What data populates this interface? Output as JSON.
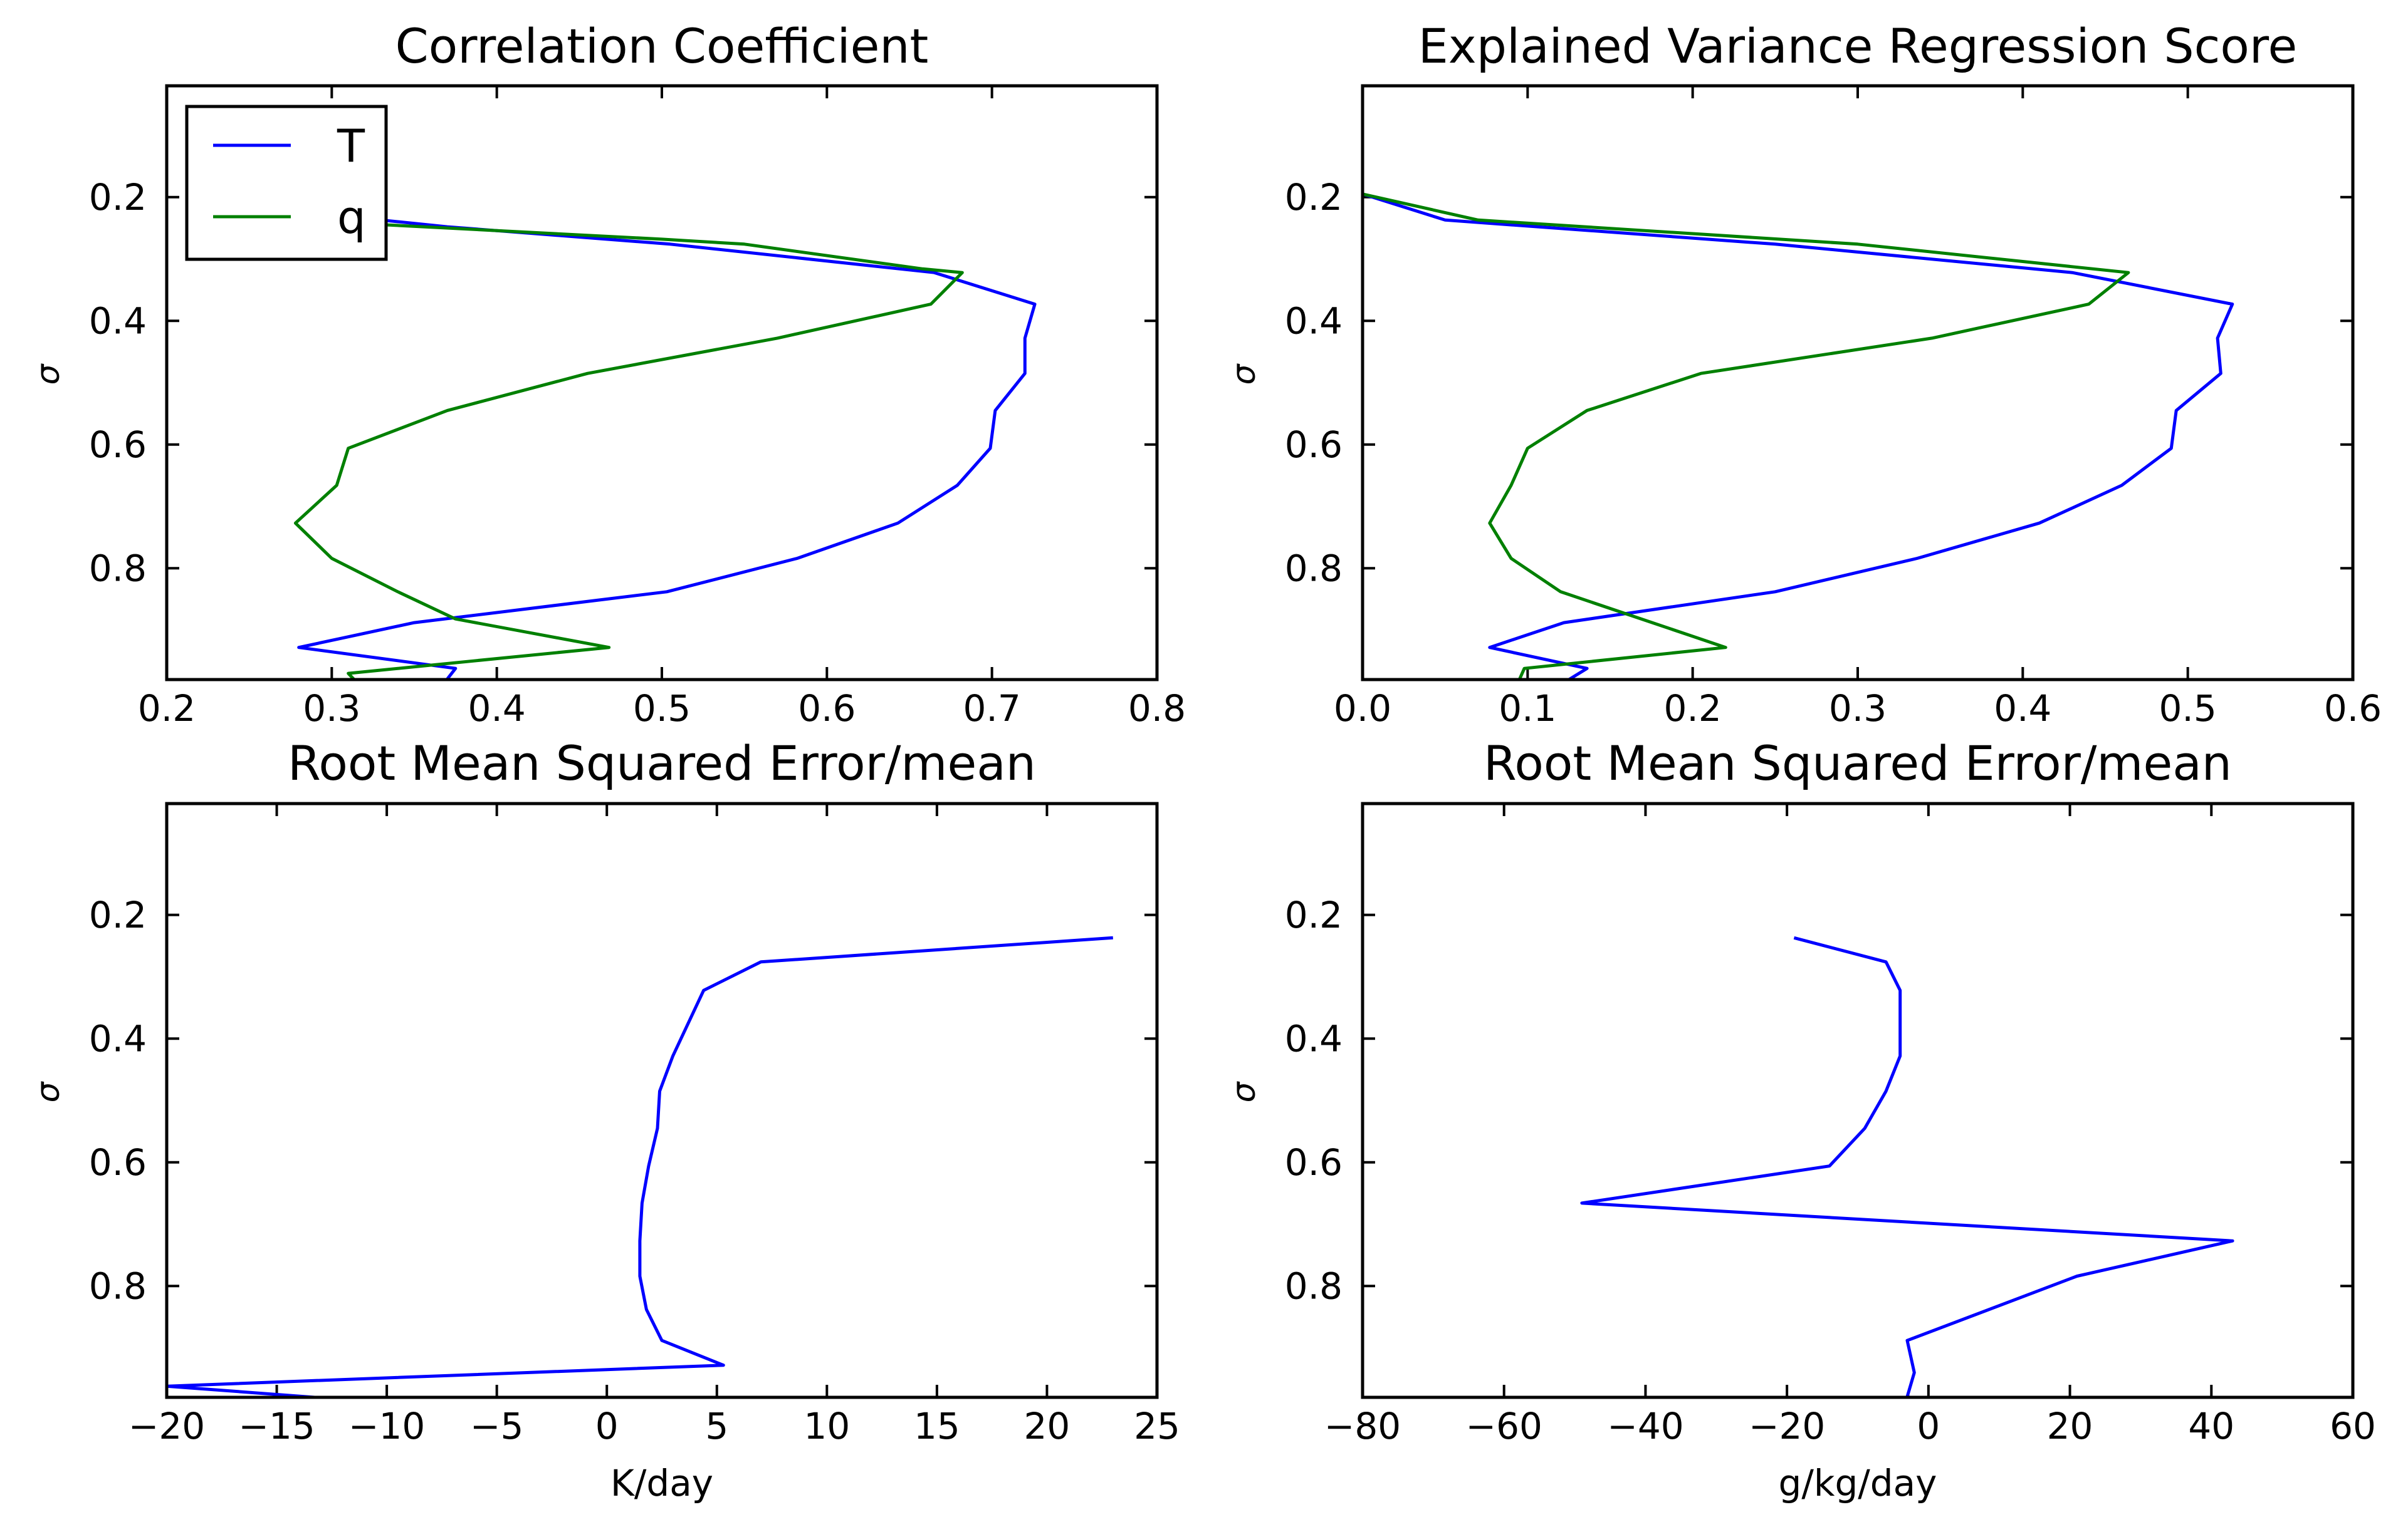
{
  "colors": {
    "T": "#0000ff",
    "q": "#008000"
  },
  "chart_data": [
    {
      "type": "line",
      "title": "Correlation Coefficient",
      "xlabel": "",
      "ylabel": "σ",
      "xlim": [
        0.2,
        0.8
      ],
      "ylim": [
        0.98,
        0.02
      ],
      "xticks": [
        0.2,
        0.3,
        0.4,
        0.5,
        0.6,
        0.7,
        0.8
      ],
      "xtick_labels": [
        "0.2",
        "0.3",
        "0.4",
        "0.5",
        "0.6",
        "0.7",
        "0.8"
      ],
      "yticks": [
        0.2,
        0.4,
        0.6,
        0.8
      ],
      "ytick_labels": [
        "0.2",
        "0.4",
        "0.6",
        "0.8"
      ],
      "legend": {
        "position": "top-left",
        "entries": [
          "T",
          "q"
        ]
      },
      "series": [
        {
          "name": "T",
          "color_key": "T",
          "points": [
            [
              0.38,
              0.998
            ],
            [
              0.37,
              0.979
            ],
            [
              0.375,
              0.962
            ],
            [
              0.28,
              0.928
            ],
            [
              0.35,
              0.888
            ],
            [
              0.503,
              0.838
            ],
            [
              0.582,
              0.784
            ],
            [
              0.643,
              0.727
            ],
            [
              0.679,
              0.666
            ],
            [
              0.699,
              0.606
            ],
            [
              0.702,
              0.545
            ],
            [
              0.72,
              0.485
            ],
            [
              0.72,
              0.428
            ],
            [
              0.726,
              0.373
            ],
            [
              0.665,
              0.322
            ],
            [
              0.505,
              0.276
            ],
            [
              0.37,
              0.248
            ],
            [
              0.33,
              0.237
            ]
          ]
        },
        {
          "name": "q",
          "color_key": "q",
          "points": [
            [
              0.32,
              0.998
            ],
            [
              0.31,
              0.97
            ],
            [
              0.468,
              0.928
            ],
            [
              0.375,
              0.882
            ],
            [
              0.34,
              0.838
            ],
            [
              0.3,
              0.784
            ],
            [
              0.278,
              0.727
            ],
            [
              0.303,
              0.666
            ],
            [
              0.31,
              0.606
            ],
            [
              0.37,
              0.545
            ],
            [
              0.455,
              0.485
            ],
            [
              0.57,
              0.428
            ],
            [
              0.663,
              0.373
            ],
            [
              0.682,
              0.322
            ],
            [
              0.658,
              0.316
            ],
            [
              0.55,
              0.276
            ],
            [
              0.5,
              0.268
            ],
            [
              0.32,
              0.243
            ]
          ]
        }
      ]
    },
    {
      "type": "line",
      "title": "Explained Variance Regression Score",
      "xlabel": "",
      "ylabel": "σ",
      "xlim": [
        0.0,
        0.6
      ],
      "ylim": [
        0.98,
        0.02
      ],
      "xticks": [
        0.0,
        0.1,
        0.2,
        0.3,
        0.4,
        0.5,
        0.6
      ],
      "xtick_labels": [
        "0.0",
        "0.1",
        "0.2",
        "0.3",
        "0.4",
        "0.5",
        "0.6"
      ],
      "yticks": [
        0.2,
        0.4,
        0.6,
        0.8
      ],
      "ytick_labels": [
        "0.2",
        "0.4",
        "0.6",
        "0.8"
      ],
      "series": [
        {
          "name": "T",
          "color_key": "T",
          "points": [
            [
              0.125,
              0.98
            ],
            [
              0.136,
              0.962
            ],
            [
              0.077,
              0.928
            ],
            [
              0.122,
              0.888
            ],
            [
              0.25,
              0.838
            ],
            [
              0.336,
              0.784
            ],
            [
              0.41,
              0.727
            ],
            [
              0.46,
              0.666
            ],
            [
              0.49,
              0.606
            ],
            [
              0.493,
              0.545
            ],
            [
              0.52,
              0.485
            ],
            [
              0.518,
              0.428
            ],
            [
              0.527,
              0.373
            ],
            [
              0.43,
              0.322
            ],
            [
              0.25,
              0.276
            ],
            [
              0.05,
              0.237
            ],
            [
              0.0,
              0.195
            ]
          ]
        },
        {
          "name": "q",
          "color_key": "q",
          "points": [
            [
              0.095,
              0.98
            ],
            [
              0.098,
              0.962
            ],
            [
              0.22,
              0.928
            ],
            [
              0.12,
              0.838
            ],
            [
              0.09,
              0.784
            ],
            [
              0.077,
              0.727
            ],
            [
              0.09,
              0.666
            ],
            [
              0.1,
              0.606
            ],
            [
              0.136,
              0.545
            ],
            [
              0.205,
              0.485
            ],
            [
              0.345,
              0.428
            ],
            [
              0.44,
              0.373
            ],
            [
              0.464,
              0.322
            ],
            [
              0.3,
              0.276
            ],
            [
              0.07,
              0.237
            ],
            [
              0.0,
              0.195
            ]
          ]
        }
      ]
    },
    {
      "type": "line",
      "title": "Root Mean Squared Error/mean",
      "xlabel": "K/day",
      "ylabel": "σ",
      "xlim": [
        -20,
        25
      ],
      "ylim": [
        0.98,
        0.02
      ],
      "xticks": [
        -20,
        -15,
        -10,
        -5,
        0,
        5,
        10,
        15,
        20,
        25
      ],
      "xtick_labels": [
        "−20",
        "−15",
        "−10",
        "−5",
        "0",
        "5",
        "10",
        "15",
        "20",
        "25"
      ],
      "yticks": [
        0.2,
        0.4,
        0.6,
        0.8
      ],
      "ytick_labels": [
        "0.2",
        "0.4",
        "0.6",
        "0.8"
      ],
      "series": [
        {
          "name": "T",
          "color_key": "T",
          "points": [
            [
              -6.5,
              0.998
            ],
            [
              -20,
              0.962
            ],
            [
              5.3,
              0.928
            ],
            [
              2.5,
              0.888
            ],
            [
              1.8,
              0.838
            ],
            [
              1.5,
              0.784
            ],
            [
              1.5,
              0.727
            ],
            [
              1.6,
              0.666
            ],
            [
              1.9,
              0.606
            ],
            [
              2.3,
              0.545
            ],
            [
              2.4,
              0.485
            ],
            [
              3.0,
              0.428
            ],
            [
              4.4,
              0.322
            ],
            [
              7.0,
              0.276
            ],
            [
              23.0,
              0.237
            ]
          ]
        }
      ]
    },
    {
      "type": "line",
      "title": "Root Mean Squared Error/mean",
      "xlabel": "g/kg/day",
      "ylabel": "σ",
      "xlim": [
        -80,
        60
      ],
      "ylim": [
        0.98,
        0.02
      ],
      "xticks": [
        -80,
        -60,
        -40,
        -20,
        0,
        20,
        40,
        60
      ],
      "xtick_labels": [
        "−80",
        "−60",
        "−40",
        "−20",
        "0",
        "20",
        "40",
        "60"
      ],
      "yticks": [
        0.2,
        0.4,
        0.6,
        0.8
      ],
      "ytick_labels": [
        "0.2",
        "0.4",
        "0.6",
        "0.8"
      ],
      "series": [
        {
          "name": "T",
          "color_key": "T",
          "points": [
            [
              5,
              0.998
            ],
            [
              -3,
              0.979
            ],
            [
              -2,
              0.94
            ],
            [
              -3,
              0.888
            ],
            [
              21,
              0.784
            ],
            [
              43,
              0.727
            ],
            [
              -49,
              0.666
            ],
            [
              -14,
              0.606
            ],
            [
              -9,
              0.545
            ],
            [
              -6,
              0.485
            ],
            [
              -4,
              0.428
            ],
            [
              -4,
              0.373
            ],
            [
              -4,
              0.322
            ],
            [
              -6,
              0.276
            ],
            [
              -19,
              0.237
            ]
          ]
        }
      ]
    }
  ]
}
